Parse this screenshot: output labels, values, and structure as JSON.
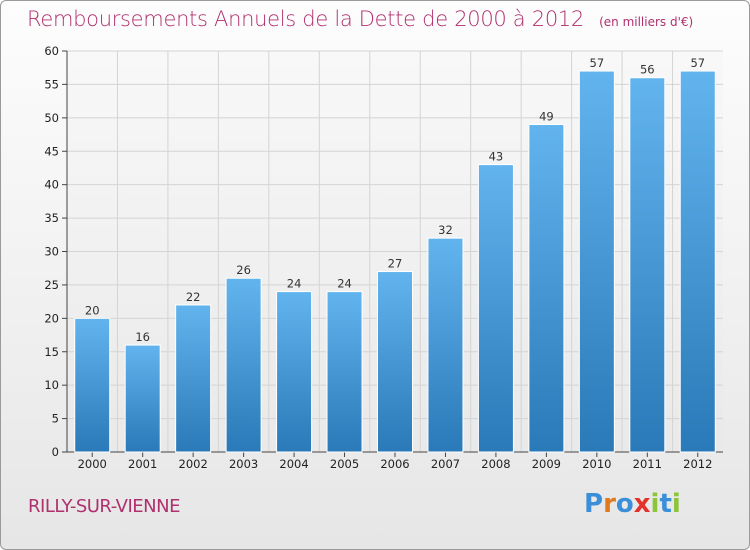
{
  "title": "Remboursements Annuels de la Dette de 2000 à 2012",
  "unit_note": "(en milliers d'€)",
  "city": "RILLY-SUR-VIENNE",
  "logo": {
    "text": "Proxiti",
    "letter_colors": [
      "#3a8fd8",
      "#e07a1f",
      "#3a8fd8",
      "#e2322b",
      "#8cc43a",
      "#3a8fd8",
      "#8cc43a"
    ]
  },
  "colors": {
    "title": "#b0306e",
    "bar_top": "#62b4ee",
    "bar_bottom": "#2a79b8",
    "grid": "#d4d4d4"
  },
  "chart_data": {
    "type": "bar",
    "title": "Remboursements Annuels de la Dette de 2000 à 2012",
    "xlabel": "",
    "ylabel": "",
    "categories": [
      "2000",
      "2001",
      "2002",
      "2003",
      "2004",
      "2005",
      "2006",
      "2007",
      "2008",
      "2009",
      "2010",
      "2011",
      "2012"
    ],
    "values": [
      20,
      16,
      22,
      26,
      24,
      24,
      27,
      32,
      43,
      49,
      57,
      56,
      57
    ],
    "ylim": [
      0,
      60
    ],
    "yticks": [
      0,
      5,
      10,
      15,
      20,
      25,
      30,
      35,
      40,
      45,
      50,
      55,
      60
    ],
    "grid": true,
    "data_labels": true
  }
}
